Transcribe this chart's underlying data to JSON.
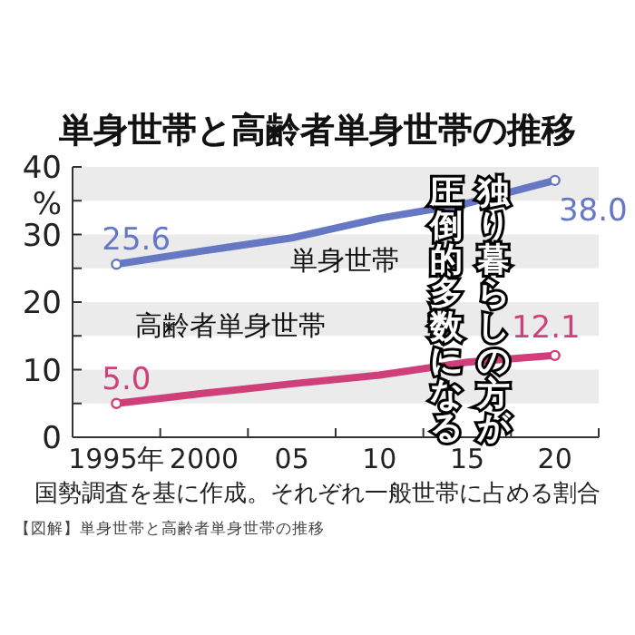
{
  "chart_data": {
    "type": "line",
    "title": "単身世帯と高齢者単身世帯の推移",
    "ylabel": "%",
    "x": [
      1995,
      2000,
      2005,
      2010,
      2015,
      2020
    ],
    "series": [
      {
        "name": "単身世帯",
        "color": "#6677c4",
        "values": [
          25.6,
          27.6,
          29.5,
          32.4,
          34.6,
          38.0
        ],
        "value_labels": [
          "25.6",
          null,
          null,
          null,
          null,
          "38.0"
        ]
      },
      {
        "name": "高齢者単身世帯",
        "color": "#cf3f7a",
        "values": [
          5.0,
          6.5,
          7.9,
          9.2,
          11.1,
          12.1
        ],
        "value_labels": [
          "5.0",
          null,
          null,
          null,
          null,
          "12.1"
        ]
      }
    ],
    "xlim": [
      1992.5,
      2022.5
    ],
    "xticks": [
      {
        "value": 1995,
        "label": "1995年"
      },
      {
        "value": 2000,
        "label": "2000"
      },
      {
        "value": 2005,
        "label": "05"
      },
      {
        "value": 2010,
        "label": "10"
      },
      {
        "value": 2015,
        "label": "15"
      },
      {
        "value": 2020,
        "label": "20"
      },
      {
        "value": 1997.5,
        "label": null
      },
      {
        "value": 2002.5,
        "label": null
      },
      {
        "value": 2007.5,
        "label": null
      },
      {
        "value": 2012.5,
        "label": null
      },
      {
        "value": 2017.5,
        "label": null
      }
    ],
    "ylim": [
      0,
      40
    ],
    "yticks": [
      0,
      {
        "value": 5,
        "label": null
      },
      10,
      {
        "value": 15,
        "label": null
      },
      20,
      {
        "value": 25,
        "label": null
      },
      30,
      {
        "value": 35,
        "label": null
      },
      40
    ],
    "bands": [
      {
        "axis": "y",
        "from": 5,
        "to": 10,
        "color": "#ebebeb"
      },
      {
        "axis": "y",
        "from": 15,
        "to": 20,
        "color": "#ebebeb"
      },
      {
        "axis": "y",
        "from": 25,
        "to": 30,
        "color": "#ebebeb"
      },
      {
        "axis": "y",
        "from": 35,
        "to": 40,
        "color": "#ebebeb"
      }
    ],
    "line_style": "solid",
    "annotations": [
      "国勢調査を基に作成。それぞれ一般世帯に占める割合",
      "【図解】単身世帯と高齢者単身世帯の推移",
      "独り暮らしの方が",
      "圧倒的多数になる"
    ]
  }
}
